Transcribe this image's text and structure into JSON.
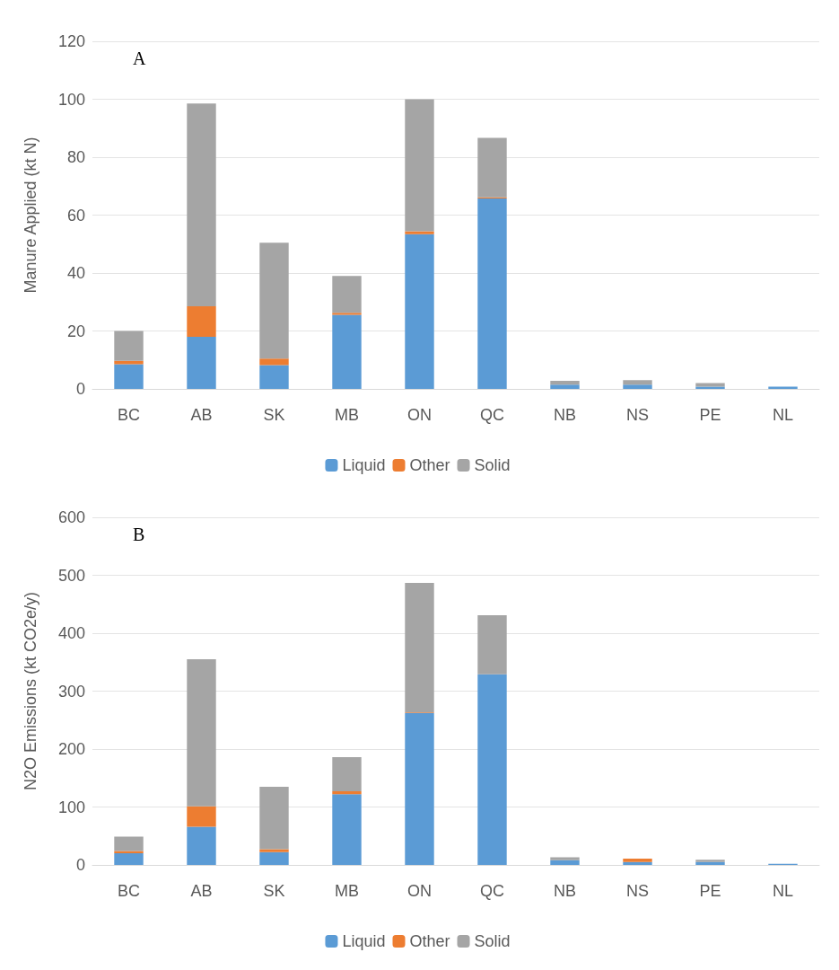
{
  "chart_data": [
    {
      "type": "bar",
      "title": "A",
      "ylabel": "Manure Applied (kt N)",
      "categories": [
        "BC",
        "AB",
        "SK",
        "MB",
        "ON",
        "QC",
        "NB",
        "NS",
        "PE",
        "NL"
      ],
      "stacked": true,
      "ylim": [
        0,
        120
      ],
      "yticks": [
        0,
        20,
        40,
        60,
        80,
        100,
        120
      ],
      "grid": "y",
      "legend": "bottom",
      "series": [
        {
          "name": "Liquid",
          "color": "#5b9bd5",
          "values": [
            8.5,
            18,
            8.2,
            25.6,
            53.4,
            65.7,
            1.5,
            1.5,
            0.8,
            0.8
          ]
        },
        {
          "name": "Other",
          "color": "#ed7d31",
          "values": [
            1.2,
            10.5,
            2.3,
            0.7,
            1,
            0.4,
            0,
            null,
            0,
            0
          ]
        },
        {
          "name": "Solid",
          "color": "#a5a5a5",
          "values": [
            10.3,
            70,
            40,
            12.7,
            45.6,
            20.6,
            1.3,
            1.5,
            1.2,
            null
          ]
        }
      ]
    },
    {
      "type": "bar",
      "title": "B",
      "ylabel": "N2O Emissions (kt CO2e/y)",
      "categories": [
        "BC",
        "AB",
        "SK",
        "MB",
        "ON",
        "QC",
        "NB",
        "NS",
        "PE",
        "NL"
      ],
      "stacked": true,
      "ylim": [
        0,
        600
      ],
      "yticks": [
        0,
        100,
        200,
        300,
        400,
        500,
        600
      ],
      "grid": "y",
      "legend": "bottom",
      "series": [
        {
          "name": "Liquid",
          "color": "#5b9bd5",
          "values": [
            20,
            66,
            22,
            122,
            262,
            329,
            8,
            5,
            5,
            2
          ]
        },
        {
          "name": "Other",
          "color": "#ed7d31",
          "values": [
            4,
            35,
            5,
            5,
            1,
            null,
            0,
            6,
            0,
            0
          ]
        },
        {
          "name": "Solid",
          "color": "#a5a5a5",
          "values": [
            25,
            254,
            108,
            59,
            224,
            102,
            5,
            null,
            4,
            null
          ]
        }
      ]
    }
  ]
}
